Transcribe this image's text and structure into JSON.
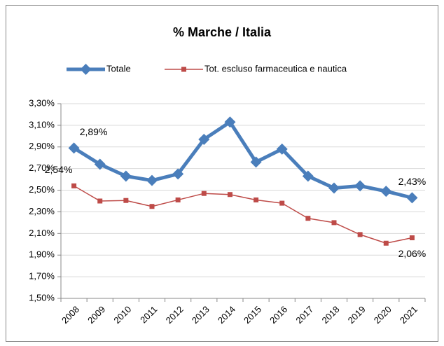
{
  "chart_data": {
    "type": "line",
    "title": "% Marche / Italia",
    "categories": [
      "2008",
      "2009",
      "2010",
      "2011",
      "2012",
      "2013",
      "2014",
      "2015",
      "2016",
      "2017",
      "2018",
      "2019",
      "2020",
      "2021"
    ],
    "series": [
      {
        "name": "Totale",
        "color": "#4a7ebb",
        "values": [
          2.89,
          2.74,
          2.63,
          2.59,
          2.65,
          2.97,
          3.13,
          2.76,
          2.88,
          2.63,
          2.52,
          2.54,
          2.49,
          2.43
        ],
        "value_labels": [
          "2,89%",
          null,
          null,
          null,
          null,
          null,
          null,
          null,
          null,
          null,
          null,
          null,
          null,
          "2,43%"
        ]
      },
      {
        "name": "Tot. escluso farmaceutica e nautica",
        "color": "#be4b48",
        "values": [
          2.54,
          2.4,
          2.405,
          2.35,
          2.41,
          2.47,
          2.46,
          2.41,
          2.38,
          2.24,
          2.2,
          2.09,
          2.01,
          2.06
        ],
        "value_labels": [
          "2,54%",
          null,
          null,
          null,
          null,
          null,
          null,
          null,
          null,
          null,
          null,
          null,
          null,
          "2,06%"
        ]
      }
    ],
    "ylim": [
      1.5,
      3.3
    ],
    "yticks": [
      {
        "value": 1.5,
        "label": "1,50%"
      },
      {
        "value": 1.7,
        "label": "1,70%"
      },
      {
        "value": 1.9,
        "label": "1,90%"
      },
      {
        "value": 2.1,
        "label": "2,10%"
      },
      {
        "value": 2.3,
        "label": "2,30%"
      },
      {
        "value": 2.5,
        "label": "2,50%"
      },
      {
        "value": 2.7,
        "label": "2,70%"
      },
      {
        "value": 2.9,
        "label": "2,90%"
      },
      {
        "value": 3.1,
        "label": "3,10%"
      },
      {
        "value": 3.3,
        "label": "3,30%"
      }
    ],
    "grid": true,
    "legend": "top"
  }
}
